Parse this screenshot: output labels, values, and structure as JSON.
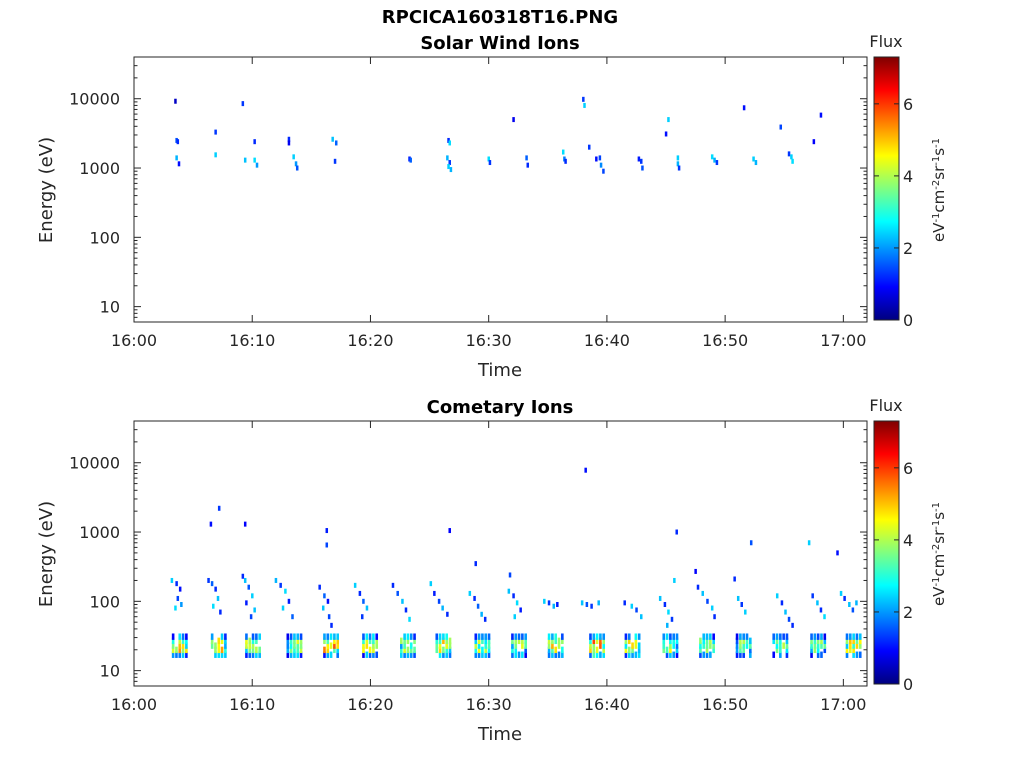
{
  "figure": {
    "title": "RPCICA160318T16.PNG"
  },
  "colormap": [
    "#00007f",
    "#0000ff",
    "#0080ff",
    "#00ffff",
    "#80ff80",
    "#ffff00",
    "#ff8000",
    "#ff0000",
    "#7f0000"
  ],
  "chart_data": [
    {
      "type": "heatmap",
      "title": "Solar Wind Ions",
      "xlabel": "Time",
      "ylabel": "Energy (eV)",
      "x_ticks": [
        "16:00",
        "16:10",
        "16:20",
        "16:30",
        "16:40",
        "16:50",
        "17:00"
      ],
      "xlim_minutes": [
        0,
        62
      ],
      "y_scale": "log",
      "y_ticks": [
        10,
        100,
        1000,
        10000
      ],
      "y_tick_labels": [
        "10",
        "100",
        "1000",
        "10000"
      ],
      "ylim": [
        6,
        40000
      ],
      "colorbar": {
        "title": "Flux",
        "ticks": [
          0,
          2,
          4,
          6
        ],
        "tick_labels": [
          "0",
          "2",
          "4",
          "6"
        ],
        "range": [
          0,
          7.3
        ]
      },
      "points": [
        {
          "t": 3.4,
          "e": 9200,
          "v": 0.5
        },
        {
          "t": 3.5,
          "e": 2500,
          "v": 1.5
        },
        {
          "t": 3.6,
          "e": 2400,
          "v": 1.2
        },
        {
          "t": 3.5,
          "e": 1400,
          "v": 2.2
        },
        {
          "t": 3.7,
          "e": 1150,
          "v": 1.0
        },
        {
          "t": 6.8,
          "e": 3300,
          "v": 1.3
        },
        {
          "t": 6.8,
          "e": 1550,
          "v": 2.4
        },
        {
          "t": 9.1,
          "e": 8500,
          "v": 1.3
        },
        {
          "t": 9.3,
          "e": 1300,
          "v": 2.3
        },
        {
          "t": 10.1,
          "e": 2400,
          "v": 1.2
        },
        {
          "t": 10.1,
          "e": 1300,
          "v": 2.5
        },
        {
          "t": 10.3,
          "e": 1100,
          "v": 2.0
        },
        {
          "t": 13.0,
          "e": 2600,
          "v": 1.2
        },
        {
          "t": 13.0,
          "e": 2300,
          "v": 0.8
        },
        {
          "t": 13.4,
          "e": 1450,
          "v": 2.4
        },
        {
          "t": 13.6,
          "e": 1150,
          "v": 2.0
        },
        {
          "t": 13.7,
          "e": 1000,
          "v": 1.5
        },
        {
          "t": 16.7,
          "e": 2600,
          "v": 2.3
        },
        {
          "t": 17.0,
          "e": 2300,
          "v": 1.6
        },
        {
          "t": 16.9,
          "e": 1250,
          "v": 1.3
        },
        {
          "t": 23.2,
          "e": 1350,
          "v": 1.1
        },
        {
          "t": 23.3,
          "e": 1300,
          "v": 1.6
        },
        {
          "t": 26.5,
          "e": 2500,
          "v": 1.2
        },
        {
          "t": 26.6,
          "e": 2300,
          "v": 2.5
        },
        {
          "t": 26.4,
          "e": 1400,
          "v": 2.2
        },
        {
          "t": 26.6,
          "e": 1200,
          "v": 1.3
        },
        {
          "t": 26.5,
          "e": 1050,
          "v": 2.4
        },
        {
          "t": 26.7,
          "e": 950,
          "v": 2.2
        },
        {
          "t": 29.9,
          "e": 1350,
          "v": 2.5
        },
        {
          "t": 30.0,
          "e": 1200,
          "v": 1.3
        },
        {
          "t": 32.0,
          "e": 5000,
          "v": 0.8
        },
        {
          "t": 33.1,
          "e": 1400,
          "v": 1.6
        },
        {
          "t": 33.2,
          "e": 1100,
          "v": 1.2
        },
        {
          "t": 36.2,
          "e": 1700,
          "v": 2.5
        },
        {
          "t": 36.3,
          "e": 1350,
          "v": 1.8
        },
        {
          "t": 36.4,
          "e": 1250,
          "v": 1.2
        },
        {
          "t": 37.9,
          "e": 9800,
          "v": 1.3
        },
        {
          "t": 38.0,
          "e": 8000,
          "v": 2.4
        },
        {
          "t": 38.4,
          "e": 2000,
          "v": 1.3
        },
        {
          "t": 39.0,
          "e": 1350,
          "v": 1.0
        },
        {
          "t": 39.3,
          "e": 1400,
          "v": 1.4
        },
        {
          "t": 39.4,
          "e": 1100,
          "v": 1.9
        },
        {
          "t": 39.6,
          "e": 900,
          "v": 1.4
        },
        {
          "t": 42.6,
          "e": 1350,
          "v": 1.1
        },
        {
          "t": 42.8,
          "e": 1250,
          "v": 1.3
        },
        {
          "t": 42.9,
          "e": 1000,
          "v": 1.5
        },
        {
          "t": 44.9,
          "e": 3100,
          "v": 1.0
        },
        {
          "t": 45.1,
          "e": 5000,
          "v": 2.4
        },
        {
          "t": 45.9,
          "e": 1400,
          "v": 2.4
        },
        {
          "t": 45.9,
          "e": 1150,
          "v": 2.2
        },
        {
          "t": 46.0,
          "e": 1000,
          "v": 1.3
        },
        {
          "t": 48.8,
          "e": 1450,
          "v": 2.5
        },
        {
          "t": 49.0,
          "e": 1300,
          "v": 2.2
        },
        {
          "t": 49.2,
          "e": 1200,
          "v": 1.3
        },
        {
          "t": 51.5,
          "e": 7400,
          "v": 1.0
        },
        {
          "t": 52.3,
          "e": 1350,
          "v": 2.4
        },
        {
          "t": 52.5,
          "e": 1200,
          "v": 2.2
        },
        {
          "t": 54.6,
          "e": 3900,
          "v": 1.4
        },
        {
          "t": 55.3,
          "e": 1600,
          "v": 1.3
        },
        {
          "t": 55.5,
          "e": 1450,
          "v": 2.4
        },
        {
          "t": 55.6,
          "e": 1250,
          "v": 2.5
        },
        {
          "t": 57.4,
          "e": 2400,
          "v": 0.9
        },
        {
          "t": 58.0,
          "e": 5800,
          "v": 1.0
        }
      ]
    },
    {
      "type": "heatmap",
      "title": "Cometary Ions",
      "xlabel": "Time",
      "ylabel": "Energy (eV)",
      "x_ticks": [
        "16:00",
        "16:10",
        "16:20",
        "16:30",
        "16:40",
        "16:50",
        "17:00"
      ],
      "xlim_minutes": [
        0,
        62
      ],
      "y_scale": "log",
      "y_ticks": [
        10,
        100,
        1000,
        10000
      ],
      "y_tick_labels": [
        "10",
        "100",
        "1000",
        "10000"
      ],
      "ylim": [
        6,
        40000
      ],
      "colorbar": {
        "title": "Flux",
        "ticks": [
          0,
          2,
          4,
          6
        ],
        "tick_labels": [
          "0",
          "2",
          "4",
          "6"
        ],
        "range": [
          0,
          7.3
        ]
      },
      "low_band_columns": [
        {
          "t": 3.2,
          "peak": 5.6
        },
        {
          "t": 6.5,
          "peak": 5.3
        },
        {
          "t": 9.4,
          "peak": 4.8
        },
        {
          "t": 12.9,
          "peak": 4.6
        },
        {
          "t": 16.0,
          "peak": 5.9
        },
        {
          "t": 19.3,
          "peak": 5.0
        },
        {
          "t": 22.5,
          "peak": 4.8
        },
        {
          "t": 25.5,
          "peak": 5.2
        },
        {
          "t": 28.8,
          "peak": 4.6
        },
        {
          "t": 31.9,
          "peak": 4.8
        },
        {
          "t": 35.0,
          "peak": 5.6
        },
        {
          "t": 38.5,
          "peak": 5.9
        },
        {
          "t": 41.5,
          "peak": 5.6
        },
        {
          "t": 44.7,
          "peak": 4.6
        },
        {
          "t": 47.8,
          "peak": 4.4
        },
        {
          "t": 50.9,
          "peak": 4.3
        },
        {
          "t": 54.0,
          "peak": 4.5
        },
        {
          "t": 57.2,
          "peak": 4.6
        },
        {
          "t": 60.2,
          "peak": 5.0
        }
      ],
      "points": [
        {
          "t": 3.1,
          "e": 200,
          "v": 2.4
        },
        {
          "t": 3.5,
          "e": 180,
          "v": 1.2
        },
        {
          "t": 3.8,
          "e": 150,
          "v": 1.0
        },
        {
          "t": 3.6,
          "e": 110,
          "v": 1.4
        },
        {
          "t": 3.9,
          "e": 90,
          "v": 2.0
        },
        {
          "t": 3.4,
          "e": 80,
          "v": 2.5
        },
        {
          "t": 6.2,
          "e": 200,
          "v": 1.3
        },
        {
          "t": 6.5,
          "e": 180,
          "v": 1.6
        },
        {
          "t": 6.8,
          "e": 150,
          "v": 1.2
        },
        {
          "t": 7.0,
          "e": 110,
          "v": 2.3
        },
        {
          "t": 6.6,
          "e": 85,
          "v": 2.5
        },
        {
          "t": 7.2,
          "e": 70,
          "v": 1.2
        },
        {
          "t": 6.4,
          "e": 1300,
          "v": 1.0
        },
        {
          "t": 7.1,
          "e": 2200,
          "v": 1.3
        },
        {
          "t": 9.3,
          "e": 1300,
          "v": 0.9
        },
        {
          "t": 9.1,
          "e": 230,
          "v": 1.2
        },
        {
          "t": 9.3,
          "e": 200,
          "v": 2.3
        },
        {
          "t": 9.6,
          "e": 160,
          "v": 1.5
        },
        {
          "t": 9.9,
          "e": 120,
          "v": 2.4
        },
        {
          "t": 9.4,
          "e": 95,
          "v": 1.1
        },
        {
          "t": 10.1,
          "e": 75,
          "v": 2.3
        },
        {
          "t": 9.8,
          "e": 60,
          "v": 1.4
        },
        {
          "t": 11.9,
          "e": 200,
          "v": 2.2
        },
        {
          "t": 12.3,
          "e": 170,
          "v": 1.3
        },
        {
          "t": 12.7,
          "e": 140,
          "v": 2.5
        },
        {
          "t": 13.0,
          "e": 100,
          "v": 1.1
        },
        {
          "t": 12.5,
          "e": 80,
          "v": 2.4
        },
        {
          "t": 13.3,
          "e": 60,
          "v": 1.6
        },
        {
          "t": 15.6,
          "e": 160,
          "v": 1.2
        },
        {
          "t": 16.0,
          "e": 120,
          "v": 1.6
        },
        {
          "t": 16.3,
          "e": 100,
          "v": 1.0
        },
        {
          "t": 15.9,
          "e": 80,
          "v": 2.3
        },
        {
          "t": 16.4,
          "e": 60,
          "v": 1.4
        },
        {
          "t": 16.6,
          "e": 45,
          "v": 1.2
        },
        {
          "t": 16.2,
          "e": 1050,
          "v": 1.1
        },
        {
          "t": 16.2,
          "e": 650,
          "v": 1.4
        },
        {
          "t": 18.6,
          "e": 170,
          "v": 2.4
        },
        {
          "t": 19.0,
          "e": 130,
          "v": 1.2
        },
        {
          "t": 19.3,
          "e": 100,
          "v": 1.6
        },
        {
          "t": 19.6,
          "e": 80,
          "v": 2.3
        },
        {
          "t": 19.2,
          "e": 60,
          "v": 1.3
        },
        {
          "t": 21.8,
          "e": 170,
          "v": 1.2
        },
        {
          "t": 22.2,
          "e": 130,
          "v": 1.5
        },
        {
          "t": 22.6,
          "e": 100,
          "v": 2.3
        },
        {
          "t": 22.9,
          "e": 75,
          "v": 1.2
        },
        {
          "t": 23.2,
          "e": 55,
          "v": 2.5
        },
        {
          "t": 25.0,
          "e": 180,
          "v": 2.4
        },
        {
          "t": 25.3,
          "e": 130,
          "v": 1.1
        },
        {
          "t": 25.7,
          "e": 100,
          "v": 1.4
        },
        {
          "t": 26.0,
          "e": 80,
          "v": 2.2
        },
        {
          "t": 26.4,
          "e": 65,
          "v": 1.2
        },
        {
          "t": 26.6,
          "e": 1050,
          "v": 0.9
        },
        {
          "t": 28.3,
          "e": 130,
          "v": 2.4
        },
        {
          "t": 28.7,
          "e": 110,
          "v": 1.2
        },
        {
          "t": 29.0,
          "e": 85,
          "v": 1.6
        },
        {
          "t": 29.3,
          "e": 65,
          "v": 2.2
        },
        {
          "t": 29.6,
          "e": 55,
          "v": 1.2
        },
        {
          "t": 28.8,
          "e": 350,
          "v": 1.2
        },
        {
          "t": 31.7,
          "e": 240,
          "v": 1.4
        },
        {
          "t": 31.6,
          "e": 140,
          "v": 2.3
        },
        {
          "t": 32.0,
          "e": 120,
          "v": 1.2
        },
        {
          "t": 32.3,
          "e": 95,
          "v": 2.5
        },
        {
          "t": 32.6,
          "e": 75,
          "v": 1.1
        },
        {
          "t": 32.1,
          "e": 60,
          "v": 2.4
        },
        {
          "t": 34.6,
          "e": 100,
          "v": 2.4
        },
        {
          "t": 35.0,
          "e": 95,
          "v": 1.3
        },
        {
          "t": 35.4,
          "e": 85,
          "v": 2.2
        },
        {
          "t": 35.7,
          "e": 90,
          "v": 1.1
        },
        {
          "t": 37.8,
          "e": 95,
          "v": 2.3
        },
        {
          "t": 38.2,
          "e": 90,
          "v": 1.5
        },
        {
          "t": 38.6,
          "e": 85,
          "v": 1.3
        },
        {
          "t": 39.2,
          "e": 95,
          "v": 2.2
        },
        {
          "t": 38.1,
          "e": 7800,
          "v": 1.0
        },
        {
          "t": 41.4,
          "e": 95,
          "v": 1.2
        },
        {
          "t": 42.0,
          "e": 85,
          "v": 2.4
        },
        {
          "t": 42.4,
          "e": 75,
          "v": 1.4
        },
        {
          "t": 42.8,
          "e": 60,
          "v": 2.3
        },
        {
          "t": 44.4,
          "e": 110,
          "v": 2.3
        },
        {
          "t": 44.8,
          "e": 90,
          "v": 1.2
        },
        {
          "t": 45.1,
          "e": 70,
          "v": 2.5
        },
        {
          "t": 45.4,
          "e": 55,
          "v": 1.3
        },
        {
          "t": 45.0,
          "e": 45,
          "v": 2.2
        },
        {
          "t": 45.8,
          "e": 1000,
          "v": 1.2
        },
        {
          "t": 45.6,
          "e": 200,
          "v": 2.4
        },
        {
          "t": 47.4,
          "e": 270,
          "v": 0.9
        },
        {
          "t": 47.6,
          "e": 160,
          "v": 1.2
        },
        {
          "t": 48.0,
          "e": 130,
          "v": 2.3
        },
        {
          "t": 48.4,
          "e": 100,
          "v": 1.4
        },
        {
          "t": 48.8,
          "e": 80,
          "v": 2.4
        },
        {
          "t": 49.0,
          "e": 60,
          "v": 1.2
        },
        {
          "t": 50.7,
          "e": 210,
          "v": 1.2
        },
        {
          "t": 51.0,
          "e": 110,
          "v": 2.3
        },
        {
          "t": 51.3,
          "e": 90,
          "v": 1.3
        },
        {
          "t": 51.6,
          "e": 70,
          "v": 2.4
        },
        {
          "t": 52.1,
          "e": 700,
          "v": 1.5
        },
        {
          "t": 54.3,
          "e": 120,
          "v": 2.4
        },
        {
          "t": 54.7,
          "e": 95,
          "v": 1.2
        },
        {
          "t": 55.0,
          "e": 70,
          "v": 2.3
        },
        {
          "t": 55.3,
          "e": 55,
          "v": 1.4
        },
        {
          "t": 55.6,
          "e": 45,
          "v": 1.2
        },
        {
          "t": 57.0,
          "e": 700,
          "v": 2.4
        },
        {
          "t": 57.3,
          "e": 120,
          "v": 1.3
        },
        {
          "t": 57.7,
          "e": 95,
          "v": 2.3
        },
        {
          "t": 58.0,
          "e": 75,
          "v": 1.2
        },
        {
          "t": 58.3,
          "e": 60,
          "v": 2.5
        },
        {
          "t": 59.4,
          "e": 500,
          "v": 1.0
        },
        {
          "t": 59.7,
          "e": 130,
          "v": 2.4
        },
        {
          "t": 60.0,
          "e": 110,
          "v": 1.2
        },
        {
          "t": 60.4,
          "e": 90,
          "v": 2.3
        },
        {
          "t": 60.7,
          "e": 75,
          "v": 1.5
        },
        {
          "t": 61.0,
          "e": 95,
          "v": 2.2
        }
      ]
    }
  ]
}
